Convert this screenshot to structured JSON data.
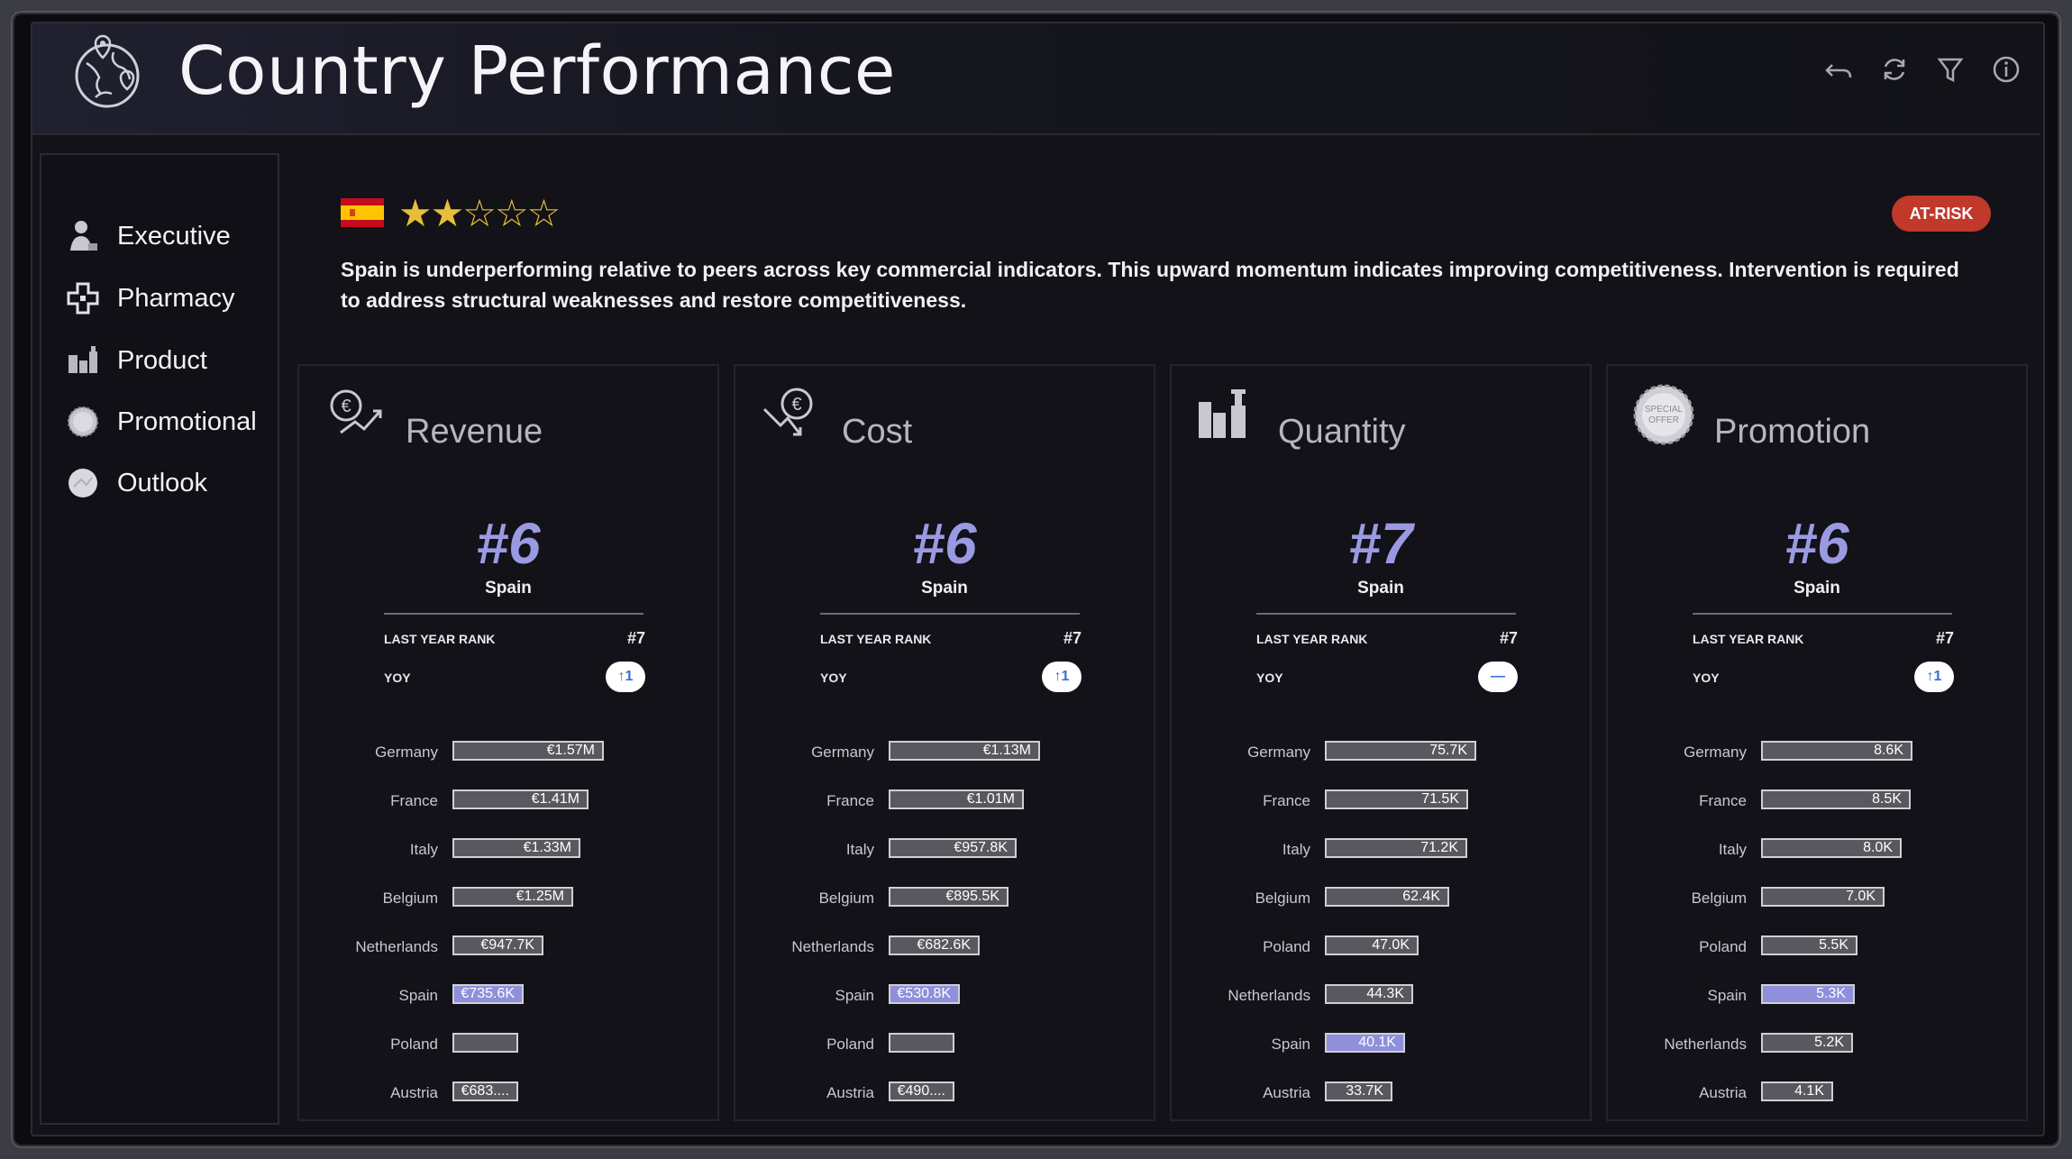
{
  "header": {
    "title": "Country Performance"
  },
  "sidebar": {
    "items": [
      {
        "label": "Executive",
        "icon": "executive-icon"
      },
      {
        "label": "Pharmacy",
        "icon": "pharmacy-cross-icon"
      },
      {
        "label": "Product",
        "icon": "product-bottles-icon"
      },
      {
        "label": "Promotional",
        "icon": "promotional-badge-icon"
      },
      {
        "label": "Outlook",
        "icon": "outlook-circle-icon"
      }
    ]
  },
  "country": {
    "flag": "spain-flag",
    "stars_filled": 2,
    "stars_total": 5,
    "stars_text": "★★☆☆☆",
    "status": "AT-RISK",
    "status_color": "#c0392b",
    "summary": "Spain is underperforming relative to peers across key commercial indicators. This upward momentum indicates improving competitiveness. Intervention is required to address structural weaknesses and restore competitiveness."
  },
  "colors": {
    "accent": "#9a9ae2",
    "highlight_bar": "#8f8fdc",
    "bar": "#58585f",
    "star": "#e7bd3a"
  },
  "cards": [
    {
      "name": "Revenue",
      "icon": "revenue-euro-trend-icon",
      "rank": "#6",
      "rank_country": "Spain",
      "last_year_label": "LAST YEAR RANK",
      "last_year_rank": "#7",
      "yoy_label": "YOY",
      "yoy": "↑1",
      "bars": [
        {
          "country": "Germany",
          "value": 1570000,
          "label": "€1.57M"
        },
        {
          "country": "France",
          "value": 1410000,
          "label": "€1.41M"
        },
        {
          "country": "Italy",
          "value": 1330000,
          "label": "€1.33M"
        },
        {
          "country": "Belgium",
          "value": 1250000,
          "label": "€1.25M"
        },
        {
          "country": "Netherlands",
          "value": 947700,
          "label": "€947.7K"
        },
        {
          "country": "Spain",
          "value": 735600,
          "label": "€735.6K",
          "highlight": true
        },
        {
          "country": "Poland",
          "value": 683000,
          "label": ""
        },
        {
          "country": "Austria",
          "value": 683000,
          "label": "€683...."
        }
      ]
    },
    {
      "name": "Cost",
      "icon": "cost-euro-down-icon",
      "rank": "#6",
      "rank_country": "Spain",
      "last_year_label": "LAST YEAR RANK",
      "last_year_rank": "#7",
      "yoy_label": "YOY",
      "yoy": "↑1",
      "bars": [
        {
          "country": "Germany",
          "value": 1130000,
          "label": "€1.13M"
        },
        {
          "country": "France",
          "value": 1010000,
          "label": "€1.01M"
        },
        {
          "country": "Italy",
          "value": 957800,
          "label": "€957.8K"
        },
        {
          "country": "Belgium",
          "value": 895500,
          "label": "€895.5K"
        },
        {
          "country": "Netherlands",
          "value": 682600,
          "label": "€682.6K"
        },
        {
          "country": "Spain",
          "value": 530800,
          "label": "€530.8K",
          "highlight": true
        },
        {
          "country": "Poland",
          "value": 490000,
          "label": ""
        },
        {
          "country": "Austria",
          "value": 490000,
          "label": "€490...."
        }
      ]
    },
    {
      "name": "Quantity",
      "icon": "quantity-bottles-icon",
      "rank": "#7",
      "rank_country": "Spain",
      "last_year_label": "LAST YEAR RANK",
      "last_year_rank": "#7",
      "yoy_label": "YOY",
      "yoy": "—",
      "bars": [
        {
          "country": "Germany",
          "value": 75700,
          "label": "75.7K"
        },
        {
          "country": "France",
          "value": 71500,
          "label": "71.5K"
        },
        {
          "country": "Italy",
          "value": 71200,
          "label": "71.2K"
        },
        {
          "country": "Belgium",
          "value": 62400,
          "label": "62.4K"
        },
        {
          "country": "Poland",
          "value": 47000,
          "label": "47.0K"
        },
        {
          "country": "Netherlands",
          "value": 44300,
          "label": "44.3K"
        },
        {
          "country": "Spain",
          "value": 40100,
          "label": "40.1K",
          "highlight": true
        },
        {
          "country": "Austria",
          "value": 33700,
          "label": "33.7K"
        }
      ]
    },
    {
      "name": "Promotion",
      "icon": "special-offer-badge-icon",
      "rank": "#6",
      "rank_country": "Spain",
      "last_year_label": "LAST YEAR RANK",
      "last_year_rank": "#7",
      "yoy_label": "YOY",
      "yoy": "↑1",
      "bars": [
        {
          "country": "Germany",
          "value": 8600,
          "label": "8.6K"
        },
        {
          "country": "France",
          "value": 8500,
          "label": "8.5K"
        },
        {
          "country": "Italy",
          "value": 8000,
          "label": "8.0K"
        },
        {
          "country": "Belgium",
          "value": 7000,
          "label": "7.0K"
        },
        {
          "country": "Poland",
          "value": 5500,
          "label": "5.5K"
        },
        {
          "country": "Spain",
          "value": 5300,
          "label": "5.3K",
          "highlight": true
        },
        {
          "country": "Netherlands",
          "value": 5200,
          "label": "5.2K"
        },
        {
          "country": "Austria",
          "value": 4100,
          "label": "4.1K"
        }
      ]
    }
  ]
}
